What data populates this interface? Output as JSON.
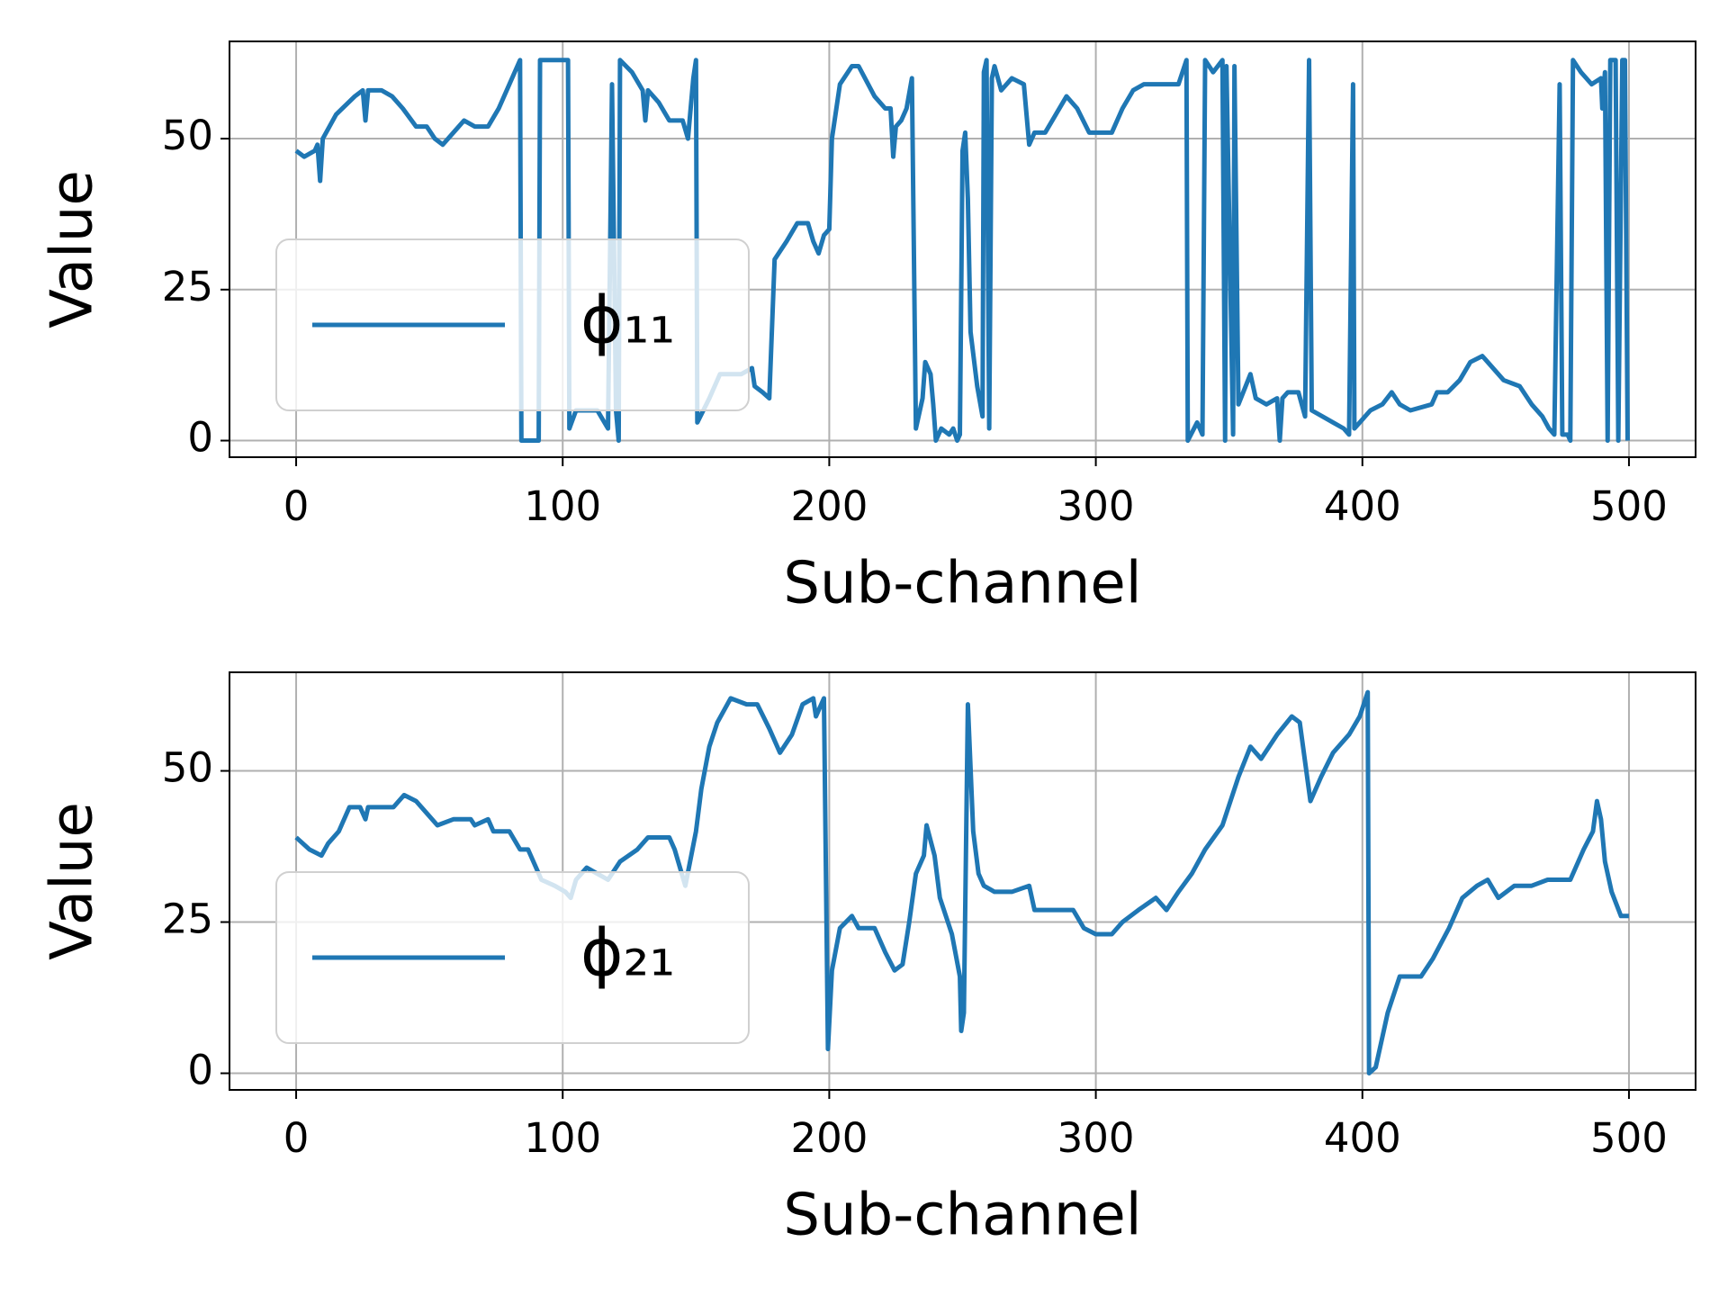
{
  "chart_data": [
    {
      "type": "line",
      "xlabel": "Sub-channel",
      "ylabel": "Value",
      "xlim": [
        -25,
        525
      ],
      "ylim": [
        -2.75,
        66.1
      ],
      "xticks": [
        0,
        100,
        200,
        300,
        400,
        500
      ],
      "yticks": [
        0,
        25,
        50
      ],
      "grid": true,
      "legend": "lower left",
      "x": [
        0,
        3,
        7,
        8,
        9,
        10,
        15,
        22,
        25,
        26,
        27,
        32,
        36,
        40,
        45,
        49,
        52,
        55,
        59,
        63,
        67,
        72,
        76,
        80,
        84,
        84.5,
        91,
        91.5,
        102,
        102.5,
        105,
        113,
        117,
        118.5,
        120,
        121,
        121.5,
        126,
        130,
        131,
        132,
        136,
        140,
        145,
        147,
        149,
        150,
        150.5,
        155,
        159,
        167,
        171,
        172,
        175,
        177.5,
        179.5,
        184,
        188,
        192,
        194,
        196,
        198,
        200,
        201,
        204,
        208.5,
        211,
        217,
        221,
        223,
        224,
        225,
        227,
        229,
        231,
        232.5,
        235,
        236,
        238,
        239,
        240,
        242,
        245,
        246.5,
        248,
        249,
        250,
        251,
        252,
        253,
        255.5,
        257.5,
        258,
        259,
        260,
        261,
        262,
        264.5,
        268.5,
        273,
        275,
        277,
        281,
        285,
        289,
        293,
        297.5,
        306,
        310,
        314,
        318,
        331,
        334,
        334.5,
        338,
        340,
        341,
        344,
        347.5,
        348.5,
        349,
        351.5,
        352,
        353.5,
        358,
        360,
        364,
        368,
        369,
        370,
        372,
        376,
        378.5,
        380,
        381,
        385,
        389,
        393,
        395,
        396.5,
        397,
        399,
        403,
        407.5,
        411,
        414,
        418,
        426,
        428,
        432,
        436.5,
        440.5,
        445,
        453,
        459,
        463.5,
        467.5,
        470,
        472,
        474,
        475,
        477,
        478,
        479,
        482,
        486,
        489.5,
        490,
        491,
        492,
        493,
        495,
        496,
        497.5,
        498.5,
        499.5
      ],
      "series": [
        {
          "name": "ϕ₁₁",
          "color": "#1f77b4",
          "values": [
            48,
            47,
            48,
            49,
            43,
            50,
            54,
            57,
            58,
            53,
            58,
            58,
            57,
            55,
            52,
            52,
            50,
            49,
            51,
            53,
            52,
            52,
            55,
            59,
            63,
            0,
            0,
            63,
            63,
            2,
            5,
            5,
            2,
            59,
            5,
            0,
            63,
            61,
            58,
            53,
            58,
            56,
            53,
            53,
            50,
            60,
            63,
            3,
            7,
            11,
            11,
            12,
            9,
            8,
            7,
            30,
            33,
            36,
            36,
            33,
            31,
            34,
            35,
            50,
            59,
            62,
            62,
            57,
            55,
            55,
            47,
            52,
            53,
            55,
            60,
            2,
            7,
            13,
            11,
            6,
            0,
            2,
            1,
            2,
            0,
            1,
            48,
            51,
            40,
            18,
            9,
            4,
            61,
            63,
            2,
            60,
            62,
            58,
            60,
            59,
            49,
            51,
            51,
            54,
            57,
            55,
            51,
            51,
            55,
            58,
            59,
            59,
            63,
            0,
            3,
            1,
            63,
            61,
            63,
            0,
            62,
            1,
            62,
            6,
            11,
            7,
            6,
            7,
            0,
            7,
            8,
            8,
            4,
            63,
            5,
            4,
            3,
            2,
            1,
            59,
            2,
            3,
            5,
            6,
            8,
            6,
            5,
            6,
            8,
            8,
            10,
            13,
            14,
            10,
            9,
            6,
            4,
            2,
            1,
            59,
            1,
            1,
            0,
            63,
            61,
            59,
            60,
            55,
            61,
            0,
            63,
            63,
            0,
            63,
            63,
            0
          ]
        }
      ]
    },
    {
      "type": "line",
      "xlabel": "Sub-channel",
      "ylabel": "Value",
      "xlim": [
        -25,
        525
      ],
      "ylim": [
        -2.75,
        66.3
      ],
      "xticks": [
        0,
        100,
        200,
        300,
        400,
        500
      ],
      "yticks": [
        0,
        25,
        50
      ],
      "grid": true,
      "legend": "lower left",
      "x": [
        0,
        5,
        9.5,
        12,
        16,
        20,
        24,
        26,
        27,
        36.5,
        40.5,
        45,
        49,
        53,
        59,
        65.5,
        67,
        72,
        74,
        80,
        84,
        87,
        90,
        92,
        97,
        101,
        103,
        105,
        109,
        113,
        117,
        121.5,
        128,
        132,
        140,
        142,
        146,
        150,
        152,
        155,
        158,
        163,
        169,
        173,
        177.5,
        181.5,
        186,
        190,
        194,
        195,
        198,
        199.5,
        201,
        204,
        208.5,
        211,
        217,
        221,
        224.5,
        227.5,
        230,
        232.5,
        235.5,
        236.5,
        239.5,
        241.5,
        246,
        249,
        249.5,
        250.5,
        252,
        254,
        256,
        258,
        262,
        268.5,
        275,
        277,
        283,
        291.5,
        295.5,
        300,
        306,
        310,
        316,
        322.5,
        326.5,
        331,
        336,
        341,
        347.5,
        353.5,
        358,
        362,
        368,
        373.5,
        376.5,
        380.5,
        384.5,
        389,
        395,
        399,
        402,
        402.5,
        405,
        409.5,
        414,
        422,
        426.5,
        432.5,
        437.5,
        443,
        447,
        451,
        457,
        463.5,
        469.5,
        478,
        483,
        486.5,
        488,
        489.5,
        491,
        493.5,
        497,
        500
      ],
      "series": [
        {
          "name": "ϕ₂₁",
          "color": "#1f77b4",
          "values": [
            39,
            37,
            36,
            38,
            40,
            44,
            44,
            42,
            44,
            44,
            46,
            45,
            43,
            41,
            42,
            42,
            41,
            42,
            40,
            40,
            37,
            37,
            34,
            32,
            31,
            30,
            29,
            32,
            34,
            33,
            32,
            35,
            37,
            39,
            39,
            37,
            31,
            40,
            47,
            54,
            58,
            62,
            61,
            61,
            57,
            53,
            56,
            61,
            62,
            59,
            62,
            4,
            17,
            24,
            26,
            24,
            24,
            20,
            17,
            18,
            25,
            33,
            36,
            41,
            36,
            29,
            23,
            16,
            7,
            10,
            61,
            40,
            33,
            31,
            30,
            30,
            31,
            27,
            27,
            27,
            24,
            23,
            23,
            25,
            27,
            29,
            27,
            30,
            33,
            37,
            41,
            49,
            54,
            52,
            56,
            59,
            58,
            45,
            49,
            53,
            56,
            59,
            63,
            0,
            1,
            10,
            16,
            16,
            19,
            24,
            29,
            31,
            32,
            29,
            31,
            31,
            32,
            32,
            37,
            40,
            45,
            42,
            35,
            30,
            26,
            26
          ]
        }
      ]
    }
  ]
}
